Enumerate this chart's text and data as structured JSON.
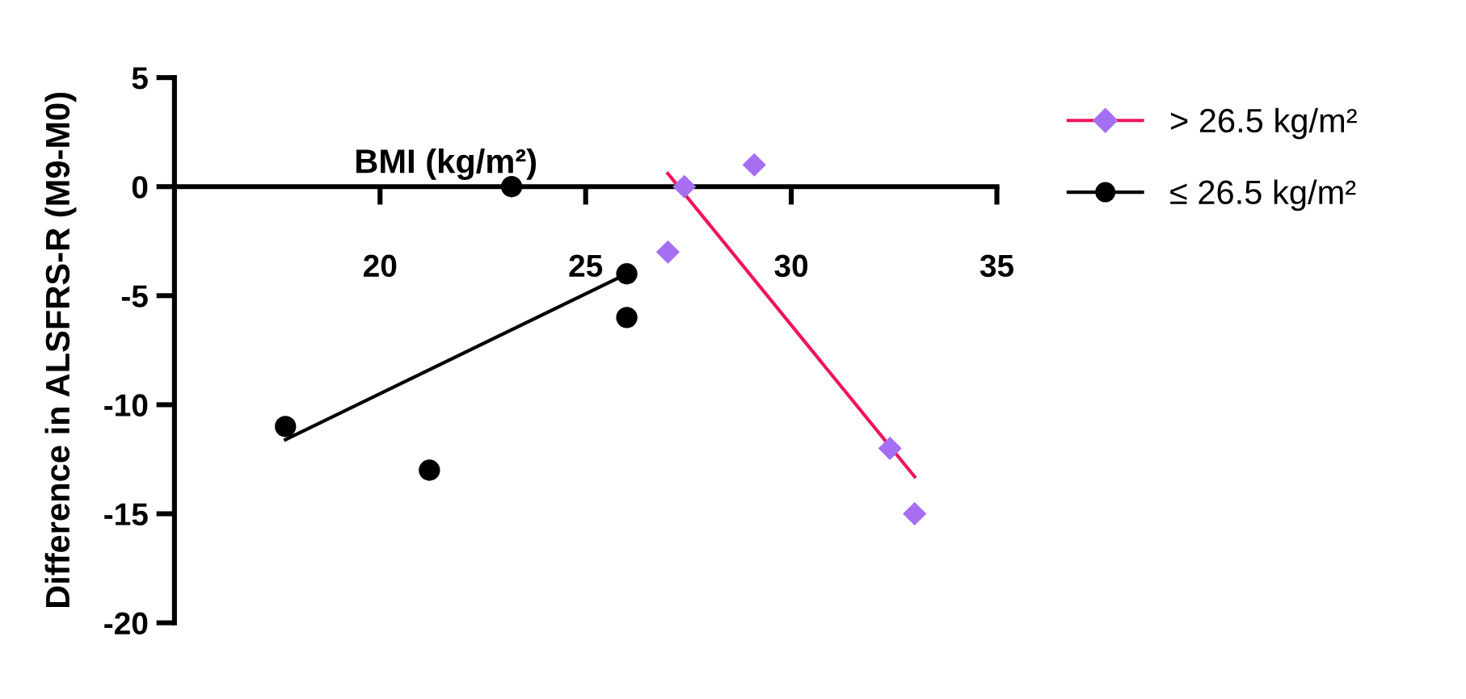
{
  "chart_data": {
    "type": "scatter",
    "xlabel": "BMI (kg/m²)",
    "ylabel": "Difference in ALSFRS-R (M9-M0)",
    "xlim": [
      15,
      35
    ],
    "xticks": [
      20,
      25,
      30,
      35
    ],
    "ylim": [
      -20,
      5
    ],
    "yticks": [
      -20,
      -15,
      -10,
      -5,
      0,
      5
    ],
    "grid": false,
    "legend": "top right",
    "series": [
      {
        "name": "> 26.5 kg/m²",
        "marker": "diamond",
        "color": "#a66ef0",
        "x": [
          27.0,
          27.4,
          29.1,
          32.4,
          33.0
        ],
        "values": [
          -3,
          0,
          1,
          -12,
          -15
        ]
      },
      {
        "name": "≤ 26.5 kg/m²",
        "marker": "circle",
        "color": "#000000",
        "x": [
          17.7,
          21.2,
          23.2,
          26.0,
          26.0
        ],
        "values": [
          -11,
          -13,
          0,
          -4,
          -6
        ]
      },
      {
        "type": "line",
        "color": "#f0145a",
        "x": [
          27.0,
          33.0
        ],
        "values": [
          0.6,
          -13.3
        ]
      },
      {
        "type": "line",
        "color": "#000000",
        "x": [
          17.7,
          26.0
        ],
        "values": [
          -11.6,
          -4.0
        ]
      }
    ]
  }
}
